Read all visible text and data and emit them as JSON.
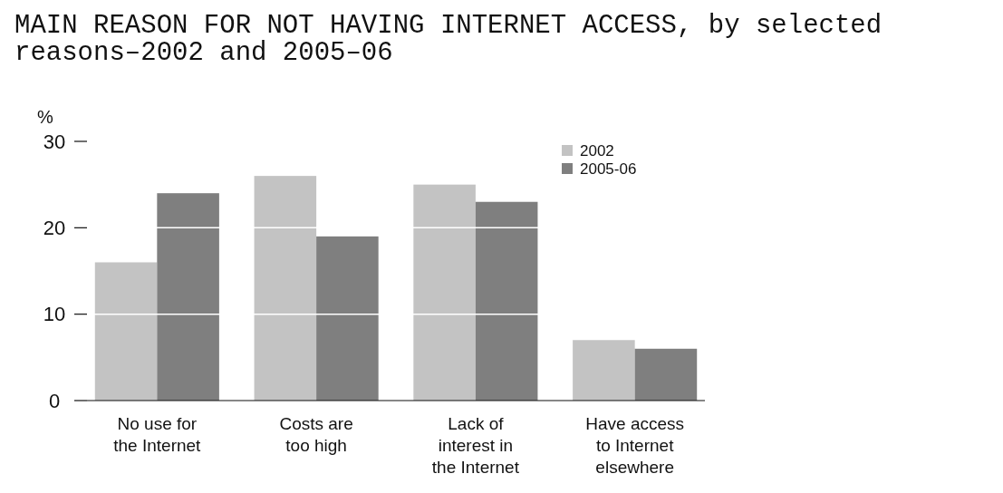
{
  "chart_data": {
    "type": "bar",
    "title": "MAIN REASON FOR NOT HAVING INTERNET ACCESS, by selected reasons–2002 and 2005–06",
    "ylabel": "%",
    "categories": [
      "No use for the Internet",
      "Costs are too high",
      "Lack of interest in the Internet",
      "Have access to Internet elsewhere"
    ],
    "series": [
      {
        "name": "2002",
        "color": "#c3c3c3",
        "values": [
          16,
          26,
          25,
          7
        ]
      },
      {
        "name": "2005-06",
        "color": "#7f7f7f",
        "values": [
          24,
          19,
          23,
          6
        ]
      }
    ],
    "ylim": [
      0,
      30
    ],
    "yticks": [
      0,
      10,
      20,
      30
    ],
    "grid": "y",
    "legend": "top right"
  }
}
